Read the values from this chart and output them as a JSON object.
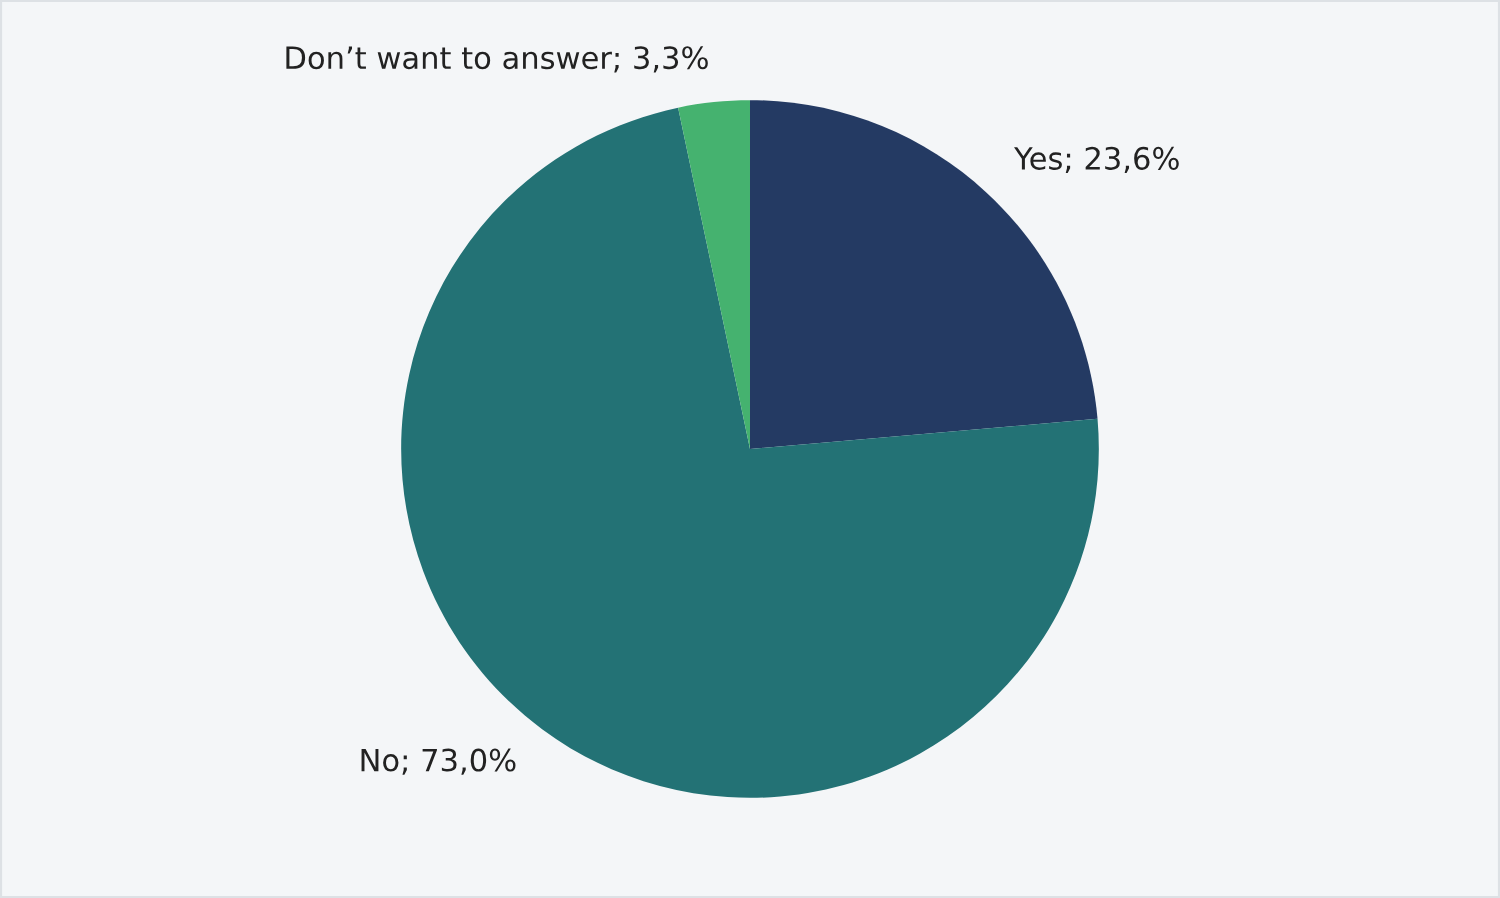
{
  "chart_data": {
    "type": "pie",
    "categories": [
      "Yes",
      "No",
      "Don’t want to answer"
    ],
    "values": [
      23.6,
      73.0,
      3.3
    ],
    "colors": [
      "#243a63",
      "#237275",
      "#45b26f"
    ],
    "value_labels": [
      "23,6%",
      "73,0%",
      "3,3%"
    ],
    "legend": false
  }
}
